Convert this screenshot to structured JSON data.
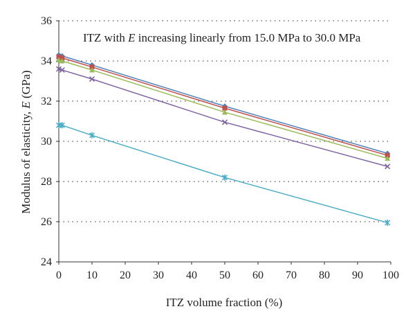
{
  "chart_data": {
    "type": "line",
    "title": "",
    "annotation": {
      "prefix": "ITZ with ",
      "italic": "E",
      "suffix": " increasing linearly from 15.0 MPa to 30.0 MPa"
    },
    "xlabel": "ITZ volume fraction (%)",
    "ylabel": {
      "prefix": "Modulus of elasticity, ",
      "italic": "E",
      "suffix": " (GPa)"
    },
    "xlim": [
      0,
      100
    ],
    "ylim": [
      24,
      36
    ],
    "xticks": [
      0,
      10,
      20,
      30,
      40,
      50,
      60,
      70,
      80,
      90,
      100
    ],
    "yticks": [
      24,
      26,
      28,
      30,
      32,
      34,
      36
    ],
    "grid": {
      "horizontal": true,
      "style": "dotted",
      "vertical": false
    },
    "legend": "none",
    "x": [
      0,
      1,
      10,
      50,
      99
    ],
    "series": [
      {
        "color": "#4f81bd",
        "marker": "diamond",
        "values": [
          34.3,
          34.25,
          33.8,
          31.75,
          29.4
        ]
      },
      {
        "color": "#c0504d",
        "marker": "square",
        "values": [
          34.2,
          34.15,
          33.7,
          31.65,
          29.3
        ]
      },
      {
        "color": "#9bbb59",
        "marker": "triangle",
        "values": [
          34.05,
          34.0,
          33.55,
          31.45,
          29.15
        ]
      },
      {
        "color": "#8064a2",
        "marker": "x",
        "values": [
          33.6,
          33.55,
          33.1,
          30.95,
          28.75
        ]
      },
      {
        "color": "#4bacc6",
        "marker": "star",
        "values": [
          30.8,
          30.8,
          30.3,
          28.2,
          25.95
        ]
      }
    ]
  }
}
